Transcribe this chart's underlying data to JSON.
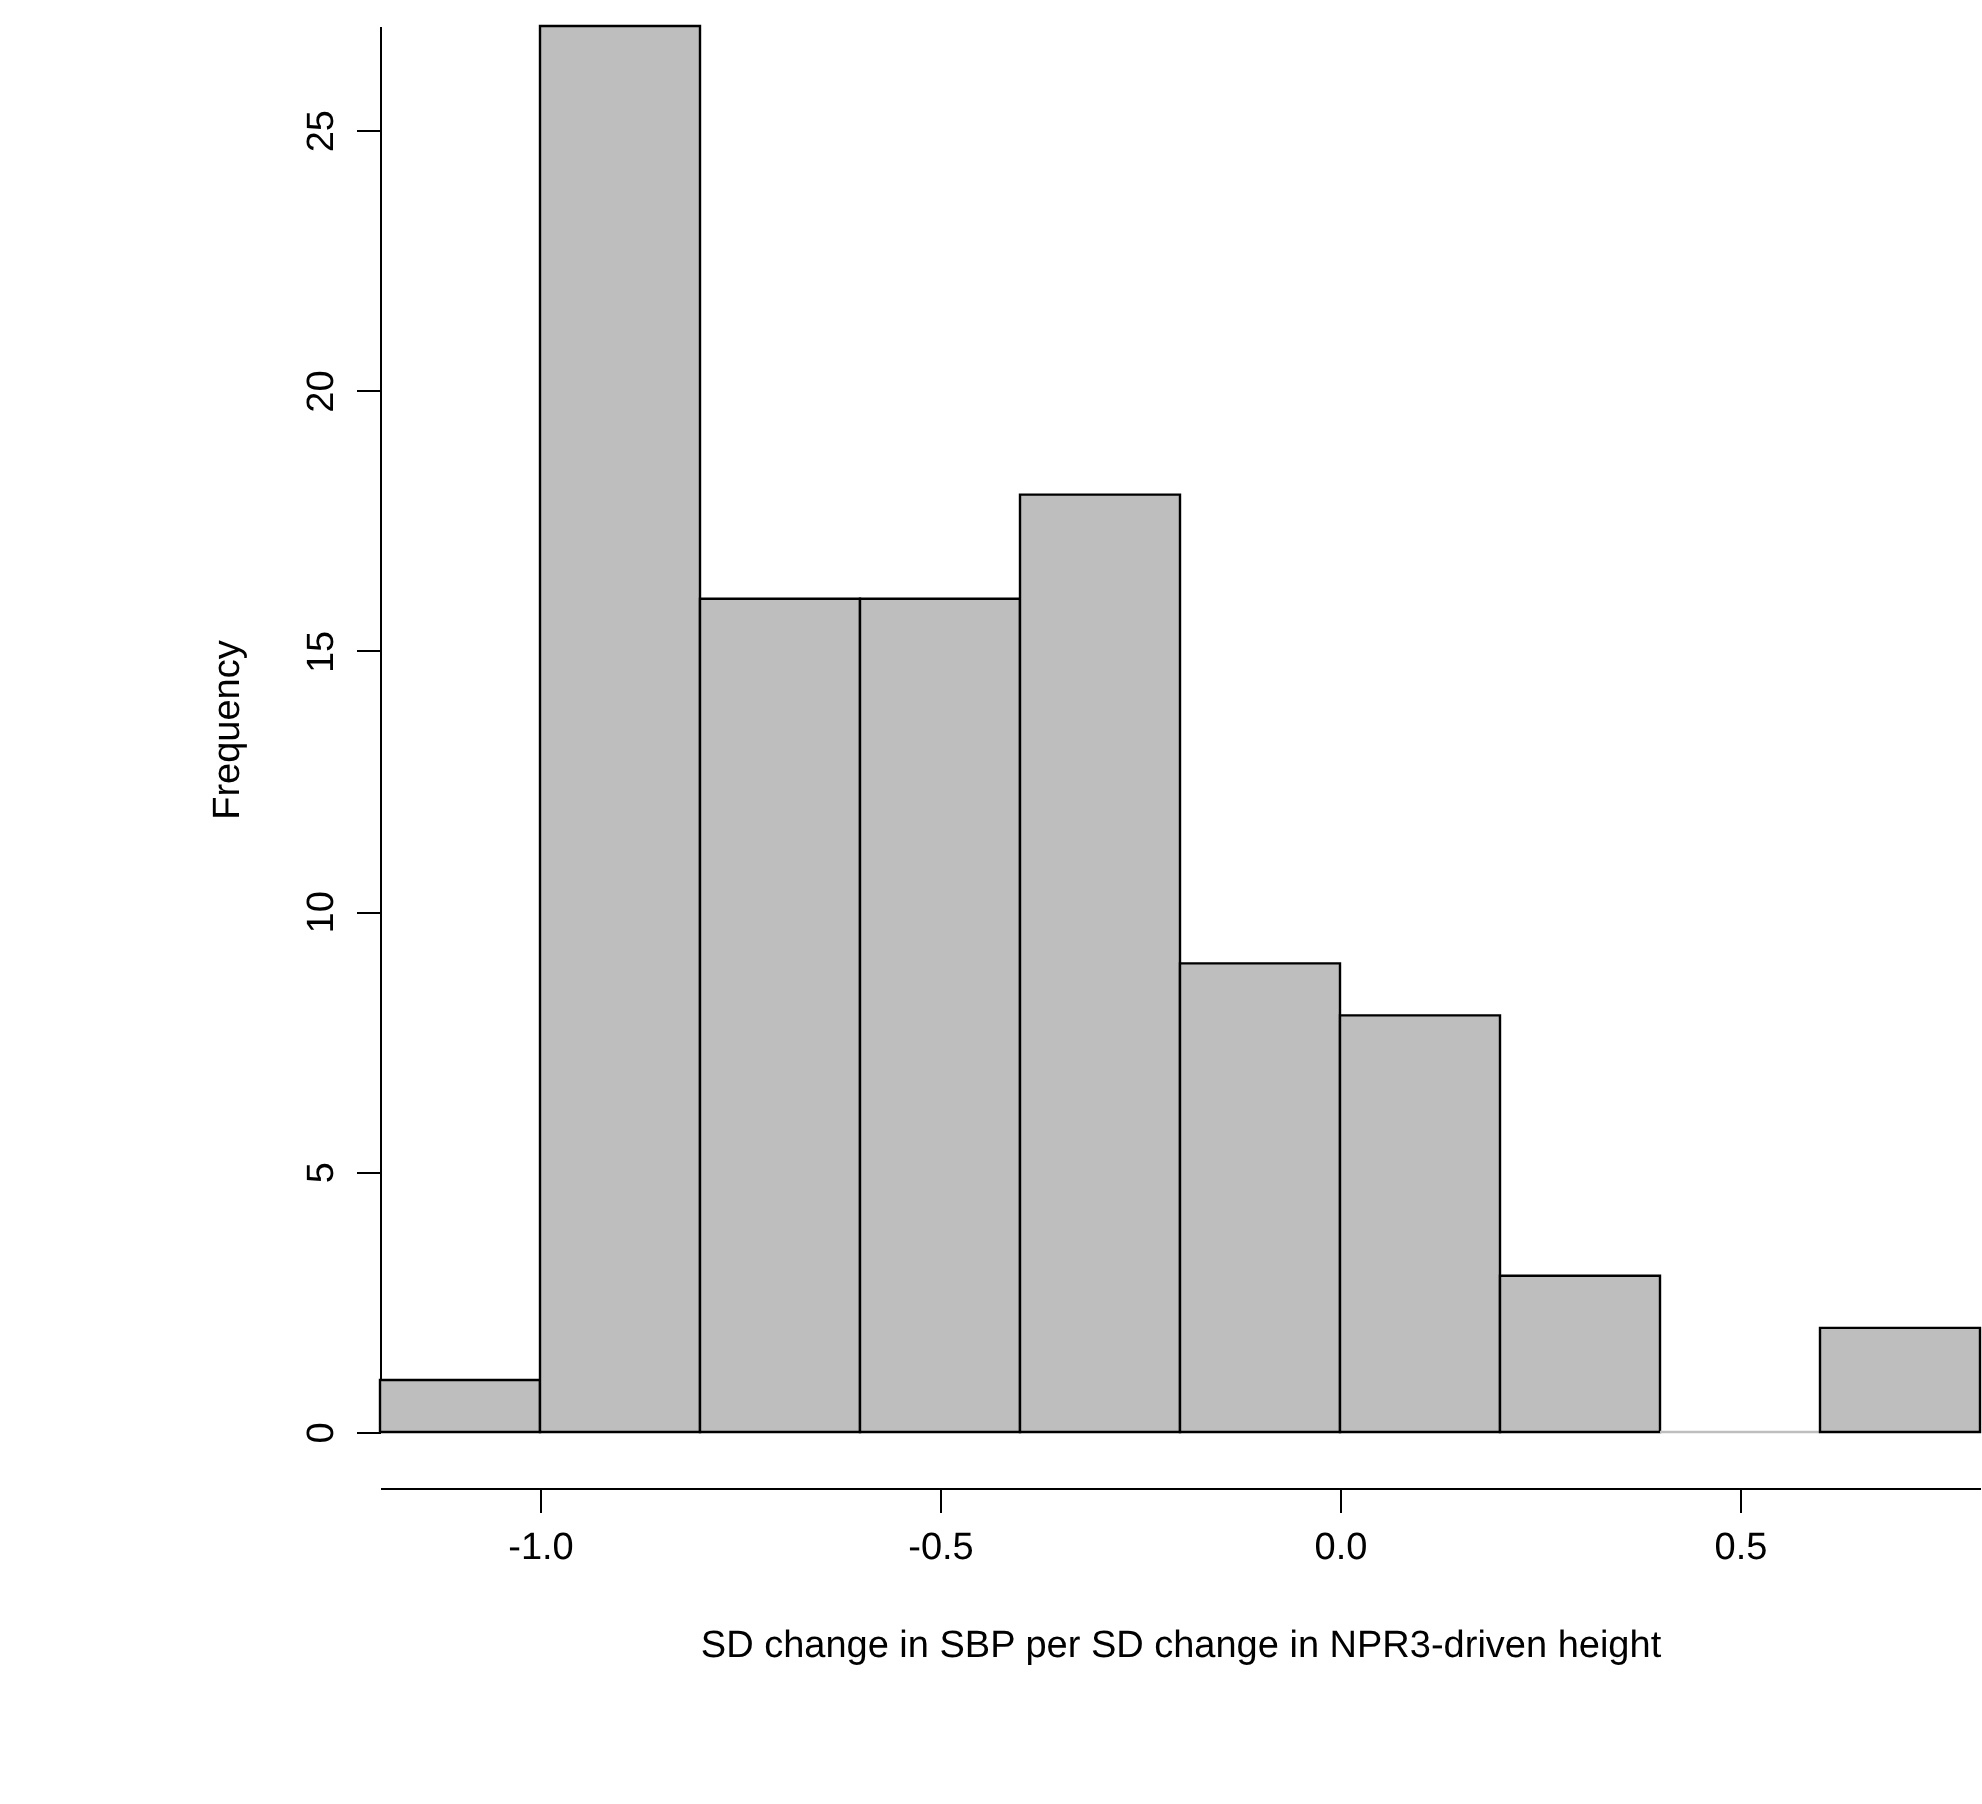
{
  "chart_data": {
    "type": "histogram",
    "xlabel": "SD change in SBP per SD change in NPR3-driven height",
    "ylabel": "Frequency",
    "bins": [
      -1.2,
      -1.0,
      -0.8,
      -0.6,
      -0.4,
      -0.2,
      0.0,
      0.2,
      0.4,
      0.6,
      0.8
    ],
    "values": [
      1,
      27,
      16,
      16,
      18,
      9,
      8,
      3,
      0,
      2
    ],
    "color": "#bebebe",
    "xlim": [
      -1.2,
      0.8
    ],
    "xticks": [
      {
        "value": -1,
        "label": "-1.0"
      },
      {
        "value": -0.5,
        "label": "-0.5"
      },
      {
        "value": 0,
        "label": "0.0"
      },
      {
        "value": 0.5,
        "label": "0.5"
      }
    ],
    "ylim": [
      0,
      27
    ],
    "yticks": [
      0,
      5,
      10,
      15,
      20,
      25
    ]
  }
}
